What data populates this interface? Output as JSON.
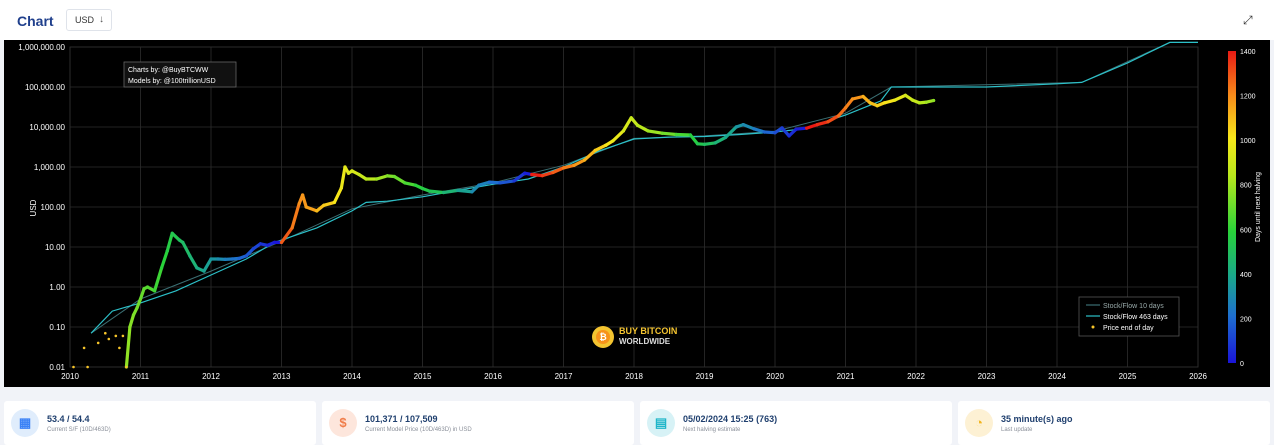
{
  "header": {
    "title": "Chart",
    "currency": "USD",
    "currency_arrow": "↓",
    "expand_icon": "⤢"
  },
  "credits": {
    "line1": "Charts by: @BuyBTCWW",
    "line2": "Models by: @100trillionUSD"
  },
  "watermark": {
    "line1": "BUY BITCOIN",
    "line2": "WORLDWIDE",
    "icon": "bitcoin-logo"
  },
  "chart_data": {
    "type": "scatter",
    "ylabel": "USD",
    "y_scale": "log",
    "ylim": [
      0.01,
      1000000
    ],
    "xlim": [
      2010,
      2026
    ],
    "x_ticks": [
      "2010",
      "2011",
      "2012",
      "2013",
      "2014",
      "2015",
      "2016",
      "2017",
      "2018",
      "2019",
      "2020",
      "2021",
      "2022",
      "2023",
      "2024",
      "2025",
      "2026"
    ],
    "y_ticks": [
      "0.01",
      "0.10",
      "1.00",
      "10.00",
      "100.00",
      "1,000.00",
      "10,000.00",
      "100,000.00",
      "1,000,000.00"
    ],
    "colorbar": {
      "label": "Days until next halving",
      "min": 0,
      "max": 1400,
      "ticks": [
        "0",
        "200",
        "400",
        "600",
        "800",
        "1000",
        "1200",
        "1400"
      ]
    },
    "legend": {
      "position": "bottom-right",
      "entries": [
        "Stock/Flow 10 days",
        "Stock/Flow 463 days",
        "Price end of day"
      ]
    },
    "price": [
      [
        2010.05,
        0.01
      ],
      [
        2010.2,
        0.03
      ],
      [
        2010.25,
        0.01
      ],
      [
        2010.4,
        0.04
      ],
      [
        2010.5,
        0.07
      ],
      [
        2010.55,
        0.05
      ],
      [
        2010.65,
        0.06
      ],
      [
        2010.7,
        0.03
      ],
      [
        2010.75,
        0.06
      ],
      [
        2010.8,
        0.01
      ],
      [
        2010.85,
        0.1
      ],
      [
        2010.9,
        0.2
      ],
      [
        2010.95,
        0.3
      ],
      [
        2011.0,
        0.5
      ],
      [
        2011.05,
        0.9
      ],
      [
        2011.1,
        1.0
      ],
      [
        2011.2,
        0.8
      ],
      [
        2011.3,
        3
      ],
      [
        2011.38,
        8
      ],
      [
        2011.45,
        22
      ],
      [
        2011.55,
        15
      ],
      [
        2011.6,
        13
      ],
      [
        2011.7,
        6
      ],
      [
        2011.8,
        3
      ],
      [
        2011.9,
        2.5
      ],
      [
        2012.0,
        5
      ],
      [
        2012.1,
        5
      ],
      [
        2012.2,
        4.9
      ],
      [
        2012.3,
        5
      ],
      [
        2012.4,
        5.2
      ],
      [
        2012.5,
        6
      ],
      [
        2012.6,
        9
      ],
      [
        2012.7,
        12
      ],
      [
        2012.8,
        11
      ],
      [
        2012.9,
        13
      ],
      [
        2013.0,
        13
      ],
      [
        2013.15,
        30
      ],
      [
        2013.25,
        120
      ],
      [
        2013.3,
        200
      ],
      [
        2013.35,
        100
      ],
      [
        2013.5,
        80
      ],
      [
        2013.6,
        110
      ],
      [
        2013.75,
        130
      ],
      [
        2013.85,
        300
      ],
      [
        2013.9,
        1000
      ],
      [
        2013.95,
        700
      ],
      [
        2014.0,
        800
      ],
      [
        2014.1,
        650
      ],
      [
        2014.2,
        500
      ],
      [
        2014.35,
        500
      ],
      [
        2014.5,
        600
      ],
      [
        2014.6,
        580
      ],
      [
        2014.75,
        400
      ],
      [
        2014.9,
        350
      ],
      [
        2015.0,
        290
      ],
      [
        2015.1,
        250
      ],
      [
        2015.3,
        230
      ],
      [
        2015.5,
        260
      ],
      [
        2015.7,
        240
      ],
      [
        2015.8,
        350
      ],
      [
        2015.95,
        420
      ],
      [
        2016.1,
        400
      ],
      [
        2016.3,
        450
      ],
      [
        2016.45,
        700
      ],
      [
        2016.55,
        650
      ],
      [
        2016.7,
        610
      ],
      [
        2016.85,
        730
      ],
      [
        2017.0,
        950
      ],
      [
        2017.15,
        1100
      ],
      [
        2017.3,
        1500
      ],
      [
        2017.45,
        2600
      ],
      [
        2017.6,
        3500
      ],
      [
        2017.7,
        4500
      ],
      [
        2017.85,
        8000
      ],
      [
        2017.96,
        17000
      ],
      [
        2018.05,
        11000
      ],
      [
        2018.2,
        8000
      ],
      [
        2018.4,
        7000
      ],
      [
        2018.6,
        6500
      ],
      [
        2018.8,
        6300
      ],
      [
        2018.9,
        3800
      ],
      [
        2019.0,
        3700
      ],
      [
        2019.15,
        4000
      ],
      [
        2019.3,
        5500
      ],
      [
        2019.45,
        10000
      ],
      [
        2019.55,
        11500
      ],
      [
        2019.7,
        9000
      ],
      [
        2019.85,
        7500
      ],
      [
        2020.0,
        7200
      ],
      [
        2020.1,
        9500
      ],
      [
        2020.2,
        6000
      ],
      [
        2020.3,
        8800
      ],
      [
        2020.45,
        9400
      ],
      [
        2020.6,
        11500
      ],
      [
        2020.75,
        13500
      ],
      [
        2020.9,
        19000
      ],
      [
        2021.0,
        30000
      ],
      [
        2021.1,
        50000
      ],
      [
        2021.25,
        58000
      ],
      [
        2021.35,
        40000
      ],
      [
        2021.45,
        34000
      ],
      [
        2021.55,
        40000
      ],
      [
        2021.7,
        47000
      ],
      [
        2021.85,
        62000
      ],
      [
        2021.95,
        47000
      ],
      [
        2022.05,
        40000
      ],
      [
        2022.15,
        42000
      ],
      [
        2022.25,
        46000
      ]
    ],
    "stock_flow_463": [
      [
        2010.3,
        0.07
      ],
      [
        2010.6,
        0.25
      ],
      [
        2011.0,
        0.4
      ],
      [
        2011.5,
        0.8
      ],
      [
        2012.0,
        2
      ],
      [
        2012.5,
        5
      ],
      [
        2012.9,
        13
      ],
      [
        2013.5,
        30
      ],
      [
        2014.0,
        80
      ],
      [
        2014.2,
        130
      ],
      [
        2014.5,
        140
      ],
      [
        2015.0,
        180
      ],
      [
        2015.5,
        260
      ],
      [
        2016.0,
        370
      ],
      [
        2016.5,
        500
      ],
      [
        2017.0,
        1000
      ],
      [
        2017.5,
        2500
      ],
      [
        2018.0,
        5000
      ],
      [
        2018.5,
        5600
      ],
      [
        2019.0,
        5800
      ],
      [
        2019.5,
        6500
      ],
      [
        2020.0,
        7500
      ],
      [
        2020.4,
        9000
      ],
      [
        2021.0,
        20000
      ],
      [
        2021.5,
        45000
      ],
      [
        2021.65,
        100000
      ],
      [
        2022.0,
        100000
      ],
      [
        2023.0,
        100000
      ],
      [
        2024.0,
        120000
      ],
      [
        2024.35,
        130000
      ],
      [
        2025.0,
        400000
      ],
      [
        2025.6,
        1300000
      ],
      [
        2026.0,
        1300000
      ]
    ],
    "stock_flow_10": [
      [
        2010.3,
        0.07
      ],
      [
        2011.0,
        0.5
      ],
      [
        2012.0,
        2.5
      ],
      [
        2013.0,
        14
      ],
      [
        2014.0,
        90
      ],
      [
        2015.0,
        200
      ],
      [
        2016.0,
        400
      ],
      [
        2017.0,
        1100
      ],
      [
        2018.0,
        5200
      ],
      [
        2019.0,
        6000
      ],
      [
        2020.0,
        7800
      ],
      [
        2021.0,
        22000
      ],
      [
        2021.65,
        100000
      ],
      [
        2024.35,
        130000
      ],
      [
        2025.6,
        1300000
      ],
      [
        2026.0,
        1300000
      ]
    ]
  },
  "stats": [
    {
      "value": "53.4 / 54.4",
      "label": "Current S/F (10D/463D)",
      "icon": "calculator-icon",
      "glyph": "▦",
      "color": "#3b82f6",
      "bg": "#e0edfc"
    },
    {
      "value": "101,371 / 107,509",
      "label": "Current Model Price (10D/463D) in USD",
      "icon": "dollar-icon",
      "glyph": "$",
      "color": "#f07d4a",
      "bg": "#fde6dc"
    },
    {
      "value": "05/02/2024 15:25 (763)",
      "label": "Next halving estimate",
      "icon": "calendar-icon",
      "glyph": "▤",
      "color": "#1fb6c9",
      "bg": "#d7f2f6"
    },
    {
      "value": "35 minute(s) ago",
      "label": "Last update",
      "icon": "clock-icon",
      "glyph": "◔",
      "color": "#f2b51f",
      "bg": "#fdf1d4"
    }
  ]
}
